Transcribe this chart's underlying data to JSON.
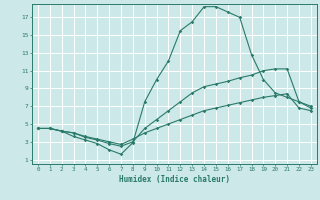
{
  "xlabel": "Humidex (Indice chaleur)",
  "background_color": "#cce8e8",
  "grid_color": "#ffffff",
  "line_color": "#2a7a6a",
  "xlim": [
    -0.5,
    23.5
  ],
  "ylim": [
    0.5,
    18.5
  ],
  "xticks": [
    0,
    1,
    2,
    3,
    4,
    5,
    6,
    7,
    8,
    9,
    10,
    11,
    12,
    13,
    14,
    15,
    16,
    17,
    18,
    19,
    20,
    21,
    22,
    23
  ],
  "yticks": [
    1,
    3,
    5,
    7,
    9,
    11,
    13,
    15,
    17
  ],
  "curve1_x": [
    0,
    1,
    2,
    3,
    4,
    5,
    6,
    7,
    8,
    9,
    10,
    11,
    12,
    13,
    14,
    15,
    16,
    17,
    18,
    19,
    20,
    21,
    22,
    23
  ],
  "curve1_y": [
    4.5,
    4.5,
    4.2,
    3.6,
    3.2,
    2.8,
    2.1,
    1.6,
    2.9,
    7.5,
    10.0,
    12.1,
    15.5,
    16.5,
    18.2,
    18.2,
    17.6,
    17.0,
    12.8,
    10.0,
    8.5,
    8.0,
    7.5,
    7.0
  ],
  "curve2_x": [
    0,
    1,
    2,
    3,
    4,
    5,
    6,
    7,
    8,
    9,
    10,
    11,
    12,
    13,
    14,
    15,
    16,
    17,
    18,
    19,
    20,
    21,
    22,
    23
  ],
  "curve2_y": [
    4.5,
    4.5,
    4.2,
    4.0,
    3.5,
    3.2,
    2.8,
    2.5,
    3.0,
    4.5,
    5.5,
    6.5,
    7.5,
    8.5,
    9.2,
    9.5,
    9.8,
    10.2,
    10.5,
    11.0,
    11.2,
    11.2,
    7.5,
    6.8
  ],
  "curve3_x": [
    0,
    1,
    2,
    3,
    4,
    5,
    6,
    7,
    8,
    9,
    10,
    11,
    12,
    13,
    14,
    15,
    16,
    17,
    18,
    19,
    20,
    21,
    22,
    23
  ],
  "curve3_y": [
    4.5,
    4.5,
    4.2,
    4.0,
    3.6,
    3.3,
    3.0,
    2.7,
    3.3,
    4.0,
    4.5,
    5.0,
    5.5,
    6.0,
    6.5,
    6.8,
    7.1,
    7.4,
    7.7,
    8.0,
    8.2,
    8.4,
    6.8,
    6.5
  ]
}
